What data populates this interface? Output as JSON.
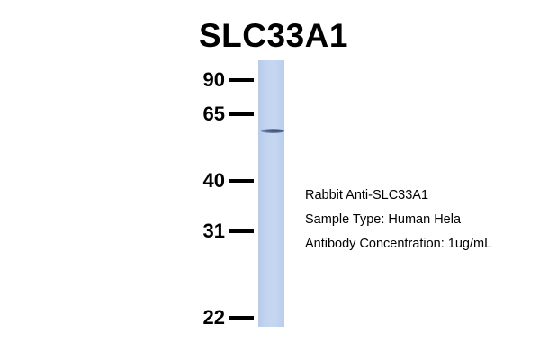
{
  "title": "SLC33A1",
  "markers": [
    "90",
    "65",
    "40",
    "31",
    "22"
  ],
  "info": {
    "line1": "Rabbit Anti-SLC33A1",
    "line2": "Sample Type: Human Hela",
    "line3": "Antibody Concentration: 1ug/mL"
  },
  "colors": {
    "lane": "#c2d4ef",
    "band": "#4a5c80"
  }
}
